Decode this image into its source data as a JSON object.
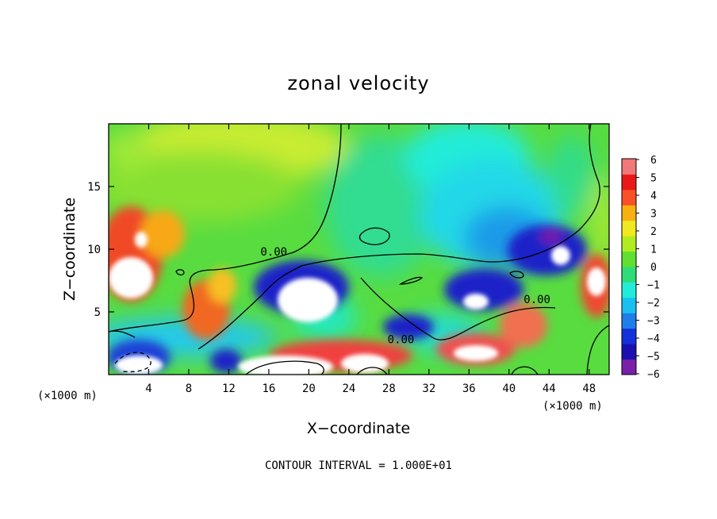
{
  "chart_data": {
    "type": "heatmap",
    "title": "zonal velocity",
    "xlabel": "X−coordinate",
    "ylabel": "Z−coordinate",
    "x_unit_left": "(×1000 m)",
    "x_unit_right": "(×1000 m)",
    "xlim": [
      0,
      50
    ],
    "ylim": [
      0,
      20
    ],
    "x_ticks": [
      {
        "value": 4,
        "label": "4"
      },
      {
        "value": 8,
        "label": "8"
      },
      {
        "value": 12,
        "label": "12"
      },
      {
        "value": 16,
        "label": "16"
      },
      {
        "value": 20,
        "label": "20"
      },
      {
        "value": 24,
        "label": "24"
      },
      {
        "value": 28,
        "label": "28"
      },
      {
        "value": 32,
        "label": "32"
      },
      {
        "value": 36,
        "label": "36"
      },
      {
        "value": 40,
        "label": "40"
      },
      {
        "value": 44,
        "label": "44"
      },
      {
        "value": 48,
        "label": "48"
      }
    ],
    "y_ticks": [
      {
        "value": 5,
        "label": "5"
      },
      {
        "value": 10,
        "label": "10"
      },
      {
        "value": 15,
        "label": "15"
      }
    ],
    "colorbar": {
      "min": -6,
      "max": 6,
      "ticks": [
        "6",
        "5",
        "4",
        "3",
        "2",
        "1",
        "0",
        "−1",
        "−2",
        "−3",
        "−4",
        "−5",
        "−6"
      ],
      "colors": [
        "#7a1fa8",
        "#1a10b0",
        "#1530d8",
        "#1f7ee8",
        "#18c0f0",
        "#20ecd8",
        "#30dc78",
        "#60e030",
        "#b0ec20",
        "#f0e820",
        "#f8b010",
        "#f85028",
        "#e81818",
        "#f07878"
      ]
    },
    "contour_labels": [
      {
        "x": 16.5,
        "y": 9.5,
        "text": "0.00"
      },
      {
        "x": 29.2,
        "y": 2.5,
        "text": "0.00"
      },
      {
        "x": 42.8,
        "y": 5.7,
        "text": "0.00"
      }
    ],
    "caption": "CONTOUR INTERVAL = 1.000E+01"
  }
}
